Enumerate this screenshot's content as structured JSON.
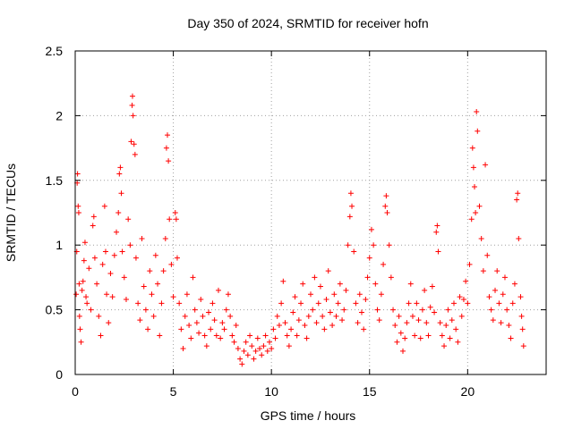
{
  "chart_data": {
    "type": "scatter",
    "title": "Day 350 of 2024, SRMTID for receiver hofn",
    "xlabel": "GPS time / hours",
    "ylabel": "SRMTID / TECUs",
    "xlim": [
      0,
      24
    ],
    "ylim": [
      0,
      2.5
    ],
    "x_ticks": [
      0,
      5,
      10,
      15,
      20
    ],
    "x_tick_labels": [
      "0",
      "5",
      "10",
      "15",
      "20"
    ],
    "y_ticks": [
      0,
      0.5,
      1,
      1.5,
      2,
      2.5
    ],
    "y_tick_labels": [
      "0",
      "0.5",
      "1",
      "1.5",
      "2",
      "2.5"
    ],
    "grid": true,
    "marker": "+",
    "color": "#ff0000",
    "series": [
      {
        "name": "SRMTID",
        "points": [
          [
            0.05,
            0.62
          ],
          [
            0.08,
            0.95
          ],
          [
            0.1,
            1.48
          ],
          [
            0.12,
            1.55
          ],
          [
            0.15,
            1.3
          ],
          [
            0.18,
            1.25
          ],
          [
            0.2,
            0.7
          ],
          [
            0.22,
            0.45
          ],
          [
            0.25,
            0.35
          ],
          [
            0.3,
            0.25
          ],
          [
            0.35,
            0.65
          ],
          [
            0.4,
            0.72
          ],
          [
            0.45,
            0.88
          ],
          [
            0.5,
            1.02
          ],
          [
            0.55,
            0.6
          ],
          [
            0.6,
            0.55
          ],
          [
            0.7,
            0.82
          ],
          [
            0.8,
            0.5
          ],
          [
            0.9,
            1.15
          ],
          [
            0.95,
            1.22
          ],
          [
            1.0,
            0.9
          ],
          [
            1.1,
            0.7
          ],
          [
            1.2,
            0.45
          ],
          [
            1.3,
            0.3
          ],
          [
            1.4,
            0.85
          ],
          [
            1.5,
            1.3
          ],
          [
            1.55,
            0.95
          ],
          [
            1.6,
            0.62
          ],
          [
            1.7,
            0.4
          ],
          [
            1.8,
            0.78
          ],
          [
            1.9,
            0.6
          ],
          [
            2.0,
            0.92
          ],
          [
            2.1,
            1.1
          ],
          [
            2.2,
            1.25
          ],
          [
            2.25,
            1.55
          ],
          [
            2.3,
            1.6
          ],
          [
            2.35,
            1.4
          ],
          [
            2.4,
            0.95
          ],
          [
            2.5,
            0.75
          ],
          [
            2.6,
            0.58
          ],
          [
            2.7,
            1.2
          ],
          [
            2.8,
            1.0
          ],
          [
            2.85,
            1.8
          ],
          [
            2.9,
            2.08
          ],
          [
            2.92,
            2.15
          ],
          [
            2.95,
            2.0
          ],
          [
            3.0,
            1.78
          ],
          [
            3.05,
            1.7
          ],
          [
            3.1,
            0.9
          ],
          [
            3.2,
            0.55
          ],
          [
            3.3,
            0.42
          ],
          [
            3.4,
            1.05
          ],
          [
            3.5,
            0.68
          ],
          [
            3.6,
            0.5
          ],
          [
            3.7,
            0.35
          ],
          [
            3.8,
            0.8
          ],
          [
            3.9,
            0.62
          ],
          [
            4.0,
            0.45
          ],
          [
            4.1,
            0.92
          ],
          [
            4.2,
            0.7
          ],
          [
            4.3,
            0.3
          ],
          [
            4.4,
            0.55
          ],
          [
            4.5,
            0.8
          ],
          [
            4.6,
            1.05
          ],
          [
            4.65,
            1.75
          ],
          [
            4.7,
            1.85
          ],
          [
            4.75,
            1.65
          ],
          [
            4.8,
            1.2
          ],
          [
            4.9,
            0.85
          ],
          [
            5.0,
            0.6
          ],
          [
            5.1,
            1.25
          ],
          [
            5.15,
            1.2
          ],
          [
            5.2,
            0.9
          ],
          [
            5.3,
            0.55
          ],
          [
            5.4,
            0.35
          ],
          [
            5.5,
            0.2
          ],
          [
            5.6,
            0.45
          ],
          [
            5.7,
            0.62
          ],
          [
            5.8,
            0.38
          ],
          [
            5.9,
            0.28
          ],
          [
            6.0,
            0.75
          ],
          [
            6.1,
            0.5
          ],
          [
            6.2,
            0.4
          ],
          [
            6.3,
            0.32
          ],
          [
            6.4,
            0.58
          ],
          [
            6.5,
            0.45
          ],
          [
            6.6,
            0.3
          ],
          [
            6.7,
            0.22
          ],
          [
            6.8,
            0.48
          ],
          [
            6.9,
            0.35
          ],
          [
            7.0,
            0.55
          ],
          [
            7.1,
            0.42
          ],
          [
            7.2,
            0.3
          ],
          [
            7.3,
            0.65
          ],
          [
            7.4,
            0.28
          ],
          [
            7.5,
            0.4
          ],
          [
            7.6,
            0.35
          ],
          [
            7.7,
            0.5
          ],
          [
            7.8,
            0.62
          ],
          [
            7.9,
            0.45
          ],
          [
            8.0,
            0.3
          ],
          [
            8.1,
            0.25
          ],
          [
            8.2,
            0.38
          ],
          [
            8.3,
            0.2
          ],
          [
            8.4,
            0.12
          ],
          [
            8.5,
            0.08
          ],
          [
            8.6,
            0.18
          ],
          [
            8.7,
            0.25
          ],
          [
            8.8,
            0.15
          ],
          [
            8.9,
            0.3
          ],
          [
            9.0,
            0.22
          ],
          [
            9.1,
            0.12
          ],
          [
            9.2,
            0.18
          ],
          [
            9.3,
            0.28
          ],
          [
            9.4,
            0.2
          ],
          [
            9.5,
            0.15
          ],
          [
            9.6,
            0.22
          ],
          [
            9.7,
            0.3
          ],
          [
            9.8,
            0.18
          ],
          [
            9.9,
            0.25
          ],
          [
            10.0,
            0.2
          ],
          [
            10.1,
            0.35
          ],
          [
            10.2,
            0.28
          ],
          [
            10.3,
            0.45
          ],
          [
            10.4,
            0.38
          ],
          [
            10.5,
            0.55
          ],
          [
            10.6,
            0.72
          ],
          [
            10.7,
            0.4
          ],
          [
            10.8,
            0.3
          ],
          [
            10.9,
            0.22
          ],
          [
            11.0,
            0.35
          ],
          [
            11.1,
            0.48
          ],
          [
            11.2,
            0.6
          ],
          [
            11.3,
            0.3
          ],
          [
            11.4,
            0.42
          ],
          [
            11.5,
            0.55
          ],
          [
            11.6,
            0.7
          ],
          [
            11.7,
            0.38
          ],
          [
            11.8,
            0.28
          ],
          [
            11.9,
            0.45
          ],
          [
            12.0,
            0.62
          ],
          [
            12.1,
            0.5
          ],
          [
            12.2,
            0.75
          ],
          [
            12.3,
            0.4
          ],
          [
            12.4,
            0.55
          ],
          [
            12.5,
            0.68
          ],
          [
            12.6,
            0.45
          ],
          [
            12.7,
            0.35
          ],
          [
            12.8,
            0.58
          ],
          [
            12.9,
            0.8
          ],
          [
            13.0,
            0.48
          ],
          [
            13.1,
            0.38
          ],
          [
            13.2,
            0.62
          ],
          [
            13.3,
            0.45
          ],
          [
            13.4,
            0.55
          ],
          [
            13.5,
            0.7
          ],
          [
            13.6,
            0.42
          ],
          [
            13.7,
            0.5
          ],
          [
            13.8,
            0.65
          ],
          [
            13.9,
            1.0
          ],
          [
            14.0,
            1.22
          ],
          [
            14.05,
            1.4
          ],
          [
            14.1,
            1.3
          ],
          [
            14.2,
            0.95
          ],
          [
            14.3,
            0.55
          ],
          [
            14.4,
            0.4
          ],
          [
            14.5,
            0.62
          ],
          [
            14.6,
            0.48
          ],
          [
            14.7,
            0.35
          ],
          [
            14.8,
            0.58
          ],
          [
            14.9,
            0.75
          ],
          [
            15.0,
            0.9
          ],
          [
            15.1,
            1.12
          ],
          [
            15.2,
            1.0
          ],
          [
            15.3,
            0.7
          ],
          [
            15.4,
            0.5
          ],
          [
            15.5,
            0.42
          ],
          [
            15.6,
            0.62
          ],
          [
            15.7,
            0.85
          ],
          [
            15.8,
            1.3
          ],
          [
            15.85,
            1.38
          ],
          [
            15.9,
            1.25
          ],
          [
            16.0,
            1.0
          ],
          [
            16.1,
            0.75
          ],
          [
            16.2,
            0.5
          ],
          [
            16.3,
            0.38
          ],
          [
            16.4,
            0.25
          ],
          [
            16.5,
            0.45
          ],
          [
            16.6,
            0.32
          ],
          [
            16.7,
            0.18
          ],
          [
            16.8,
            0.28
          ],
          [
            16.9,
            0.4
          ],
          [
            17.0,
            0.55
          ],
          [
            17.1,
            0.7
          ],
          [
            17.2,
            0.45
          ],
          [
            17.3,
            0.3
          ],
          [
            17.4,
            0.55
          ],
          [
            17.5,
            0.42
          ],
          [
            17.6,
            0.28
          ],
          [
            17.7,
            0.5
          ],
          [
            17.8,
            0.65
          ],
          [
            17.9,
            0.4
          ],
          [
            18.0,
            0.3
          ],
          [
            18.1,
            0.52
          ],
          [
            18.2,
            0.68
          ],
          [
            18.3,
            0.48
          ],
          [
            18.4,
            1.1
          ],
          [
            18.45,
            1.15
          ],
          [
            18.5,
            0.95
          ],
          [
            18.6,
            0.4
          ],
          [
            18.7,
            0.3
          ],
          [
            18.8,
            0.22
          ],
          [
            18.9,
            0.38
          ],
          [
            19.0,
            0.5
          ],
          [
            19.1,
            0.28
          ],
          [
            19.2,
            0.42
          ],
          [
            19.3,
            0.55
          ],
          [
            19.4,
            0.35
          ],
          [
            19.5,
            0.25
          ],
          [
            19.6,
            0.6
          ],
          [
            19.7,
            0.45
          ],
          [
            19.8,
            0.58
          ],
          [
            19.9,
            0.72
          ],
          [
            20.0,
            0.55
          ],
          [
            20.1,
            0.85
          ],
          [
            20.2,
            1.2
          ],
          [
            20.25,
            1.75
          ],
          [
            20.3,
            1.6
          ],
          [
            20.35,
            1.45
          ],
          [
            20.4,
            1.25
          ],
          [
            20.45,
            2.03
          ],
          [
            20.5,
            1.88
          ],
          [
            20.6,
            1.3
          ],
          [
            20.7,
            1.05
          ],
          [
            20.8,
            0.8
          ],
          [
            20.9,
            1.62
          ],
          [
            21.0,
            0.92
          ],
          [
            21.1,
            0.6
          ],
          [
            21.2,
            0.5
          ],
          [
            21.3,
            0.42
          ],
          [
            21.4,
            0.65
          ],
          [
            21.5,
            0.8
          ],
          [
            21.6,
            0.55
          ],
          [
            21.7,
            0.4
          ],
          [
            21.8,
            0.62
          ],
          [
            21.9,
            0.75
          ],
          [
            22.0,
            0.5
          ],
          [
            22.1,
            0.38
          ],
          [
            22.2,
            0.28
          ],
          [
            22.3,
            0.55
          ],
          [
            22.4,
            0.7
          ],
          [
            22.5,
            1.35
          ],
          [
            22.55,
            1.4
          ],
          [
            22.6,
            1.05
          ],
          [
            22.7,
            0.6
          ],
          [
            22.75,
            0.45
          ],
          [
            22.8,
            0.35
          ],
          [
            22.85,
            0.22
          ]
        ]
      }
    ]
  }
}
